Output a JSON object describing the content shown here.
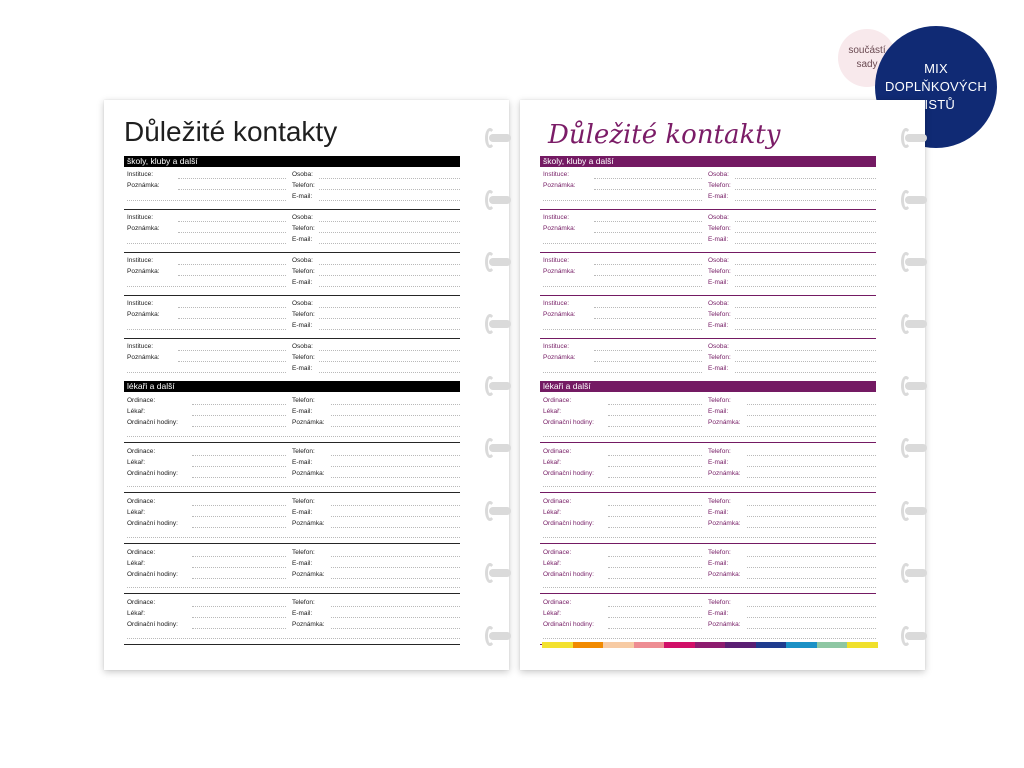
{
  "badges": {
    "small": [
      "součástí",
      "sady"
    ],
    "large": [
      "MIX",
      "DOPLŇKOVÝCH",
      "LISTŮ"
    ]
  },
  "title": "Důležité kontakty",
  "sections": {
    "schools": {
      "header": "školy, kluby a další",
      "left_labels": [
        "Instituce:",
        "Poznámka:"
      ],
      "right_labels": [
        "Osoba:",
        "Telefon:",
        "E-mail:"
      ]
    },
    "doctors": {
      "header": "lékaři a další",
      "left_labels": [
        "Ordinace:",
        "Lékař:",
        "Ordinační hodiny:"
      ],
      "right_labels": [
        "Telefon:",
        "E-mail:",
        "Poznámka:"
      ]
    }
  },
  "colors": {
    "left_accent": "#000000",
    "right_accent": "#741a63",
    "strip": [
      "#f3e12f",
      "#f18a00",
      "#f7cba4",
      "#ee8d93",
      "#d10f68",
      "#8d1c6f",
      "#5a1f73",
      "#1f3c8f",
      "#1b91c6",
      "#8ec7a3",
      "#f0e02b"
    ]
  },
  "ring_icon": "binder-ring-icon"
}
